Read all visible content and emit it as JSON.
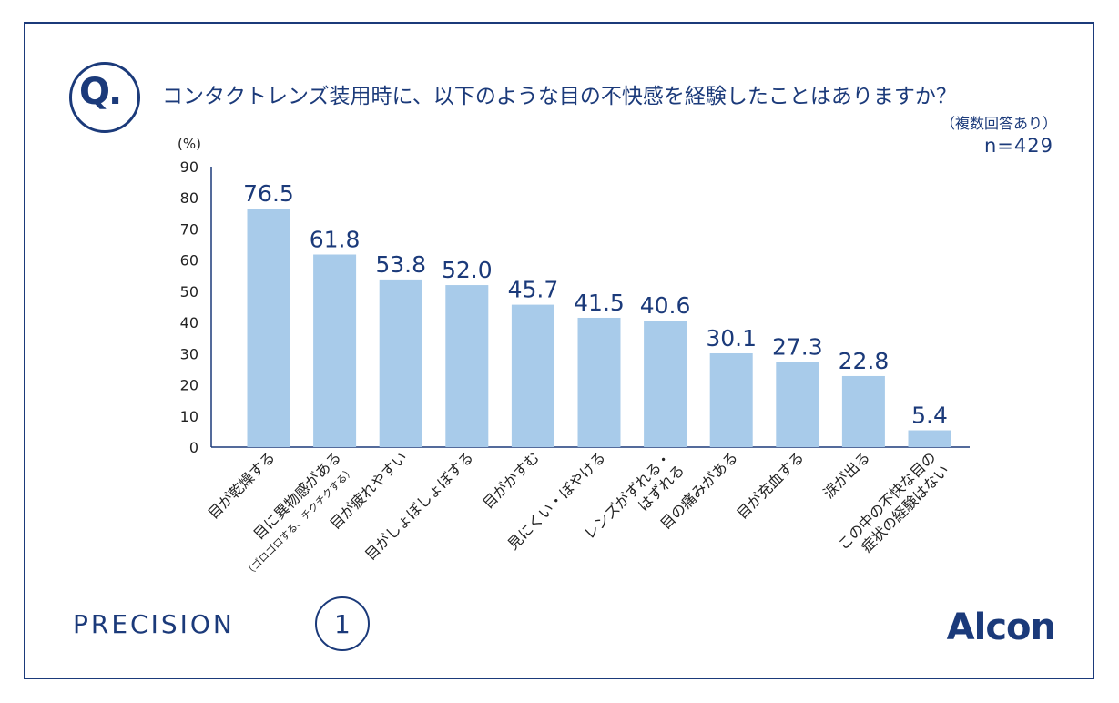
{
  "header": {
    "badge": "Q.",
    "question": "コンタクトレンズ装用時に、以下のような目の不快感を経験したことはありますか？",
    "note": "（複数回答あり）",
    "sample": "n=429"
  },
  "brands": {
    "left_text": "PRECISION",
    "left_number": "1",
    "right": "Alcon"
  },
  "colors": {
    "bar": "#a8cbea",
    "accent": "#1b3a7a"
  },
  "chart_data": {
    "type": "bar",
    "ylabel": "(%)",
    "ylim": [
      0,
      90
    ],
    "yticks": [
      0,
      10,
      20,
      30,
      40,
      50,
      60,
      70,
      80,
      90
    ],
    "grid": false,
    "categories": [
      [
        "目が乾燥する"
      ],
      [
        "目に異物感がある",
        "（ゴロゴロする、チクチクする）"
      ],
      [
        "目が疲れやすい"
      ],
      [
        "目がしょぼしょぼする"
      ],
      [
        "目がかすむ"
      ],
      [
        "見にくい・ぼやける"
      ],
      [
        "レンズがずれる・",
        "はずれる"
      ],
      [
        "目の痛みがある"
      ],
      [
        "目が充血する"
      ],
      [
        "涙が出る"
      ],
      [
        "この中の不快な目の",
        "症状の経験はない"
      ]
    ],
    "values": [
      76.5,
      61.8,
      53.8,
      52.0,
      45.7,
      41.5,
      40.6,
      30.1,
      27.3,
      22.8,
      5.4
    ],
    "value_labels": [
      "76.5",
      "61.8",
      "53.8",
      "52.0",
      "45.7",
      "41.5",
      "40.6",
      "30.1",
      "27.3",
      "22.8",
      "5.4"
    ]
  }
}
